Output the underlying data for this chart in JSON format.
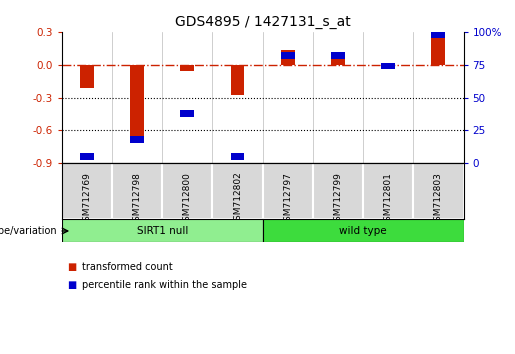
{
  "title": "GDS4895 / 1427131_s_at",
  "samples": [
    "GSM712769",
    "GSM712798",
    "GSM712800",
    "GSM712802",
    "GSM712797",
    "GSM712799",
    "GSM712801",
    "GSM712803"
  ],
  "transformed_count": [
    -0.21,
    -0.72,
    -0.06,
    -0.28,
    0.13,
    0.12,
    0.02,
    0.3
  ],
  "percentile_rank": [
    5,
    18,
    38,
    5,
    82,
    82,
    74,
    98
  ],
  "groups": [
    {
      "label": "SIRT1 null",
      "start": 0,
      "end": 4,
      "color": "#90ee90"
    },
    {
      "label": "wild type",
      "start": 4,
      "end": 8,
      "color": "#3ddc3d"
    }
  ],
  "group_label": "genotype/variation",
  "ylim_left": [
    -0.9,
    0.3
  ],
  "ylim_right": [
    0,
    100
  ],
  "yticks_left": [
    -0.9,
    -0.6,
    -0.3,
    0.0,
    0.3
  ],
  "yticks_right": [
    0,
    25,
    50,
    75,
    100
  ],
  "red_color": "#cc2200",
  "blue_color": "#0000cc",
  "bar_width": 0.5,
  "hline_y": 0.0,
  "dotted_lines": [
    -0.3,
    -0.6
  ],
  "legend_items": [
    "transformed count",
    "percentile rank within the sample"
  ],
  "background_color": "#ffffff",
  "plot_bg": "#ffffff",
  "title_fontsize": 10
}
